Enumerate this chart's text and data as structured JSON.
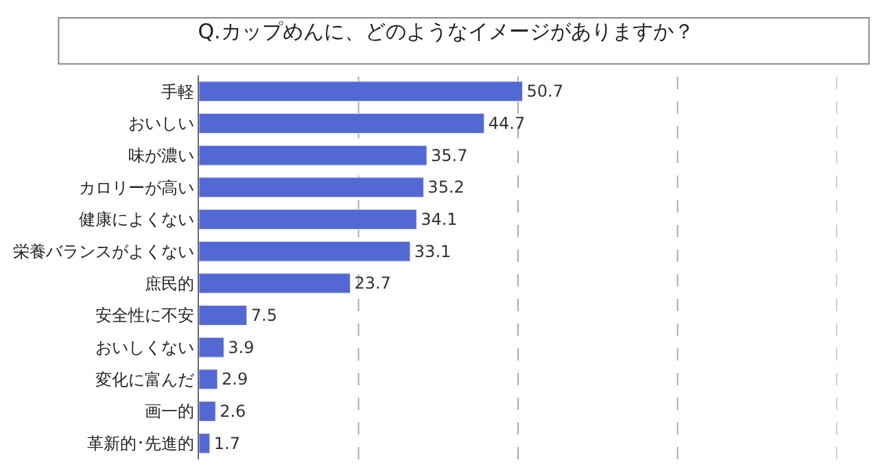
{
  "chart_data": {
    "type": "bar",
    "orientation": "horizontal",
    "title": "Q.カップめんに、どのようなイメージがありますか？",
    "categories": [
      "手軽",
      "おいしい",
      "味が濃い",
      "カロリーが高い",
      "健康によくない",
      "栄養バランスがよくない",
      "庶民的",
      "安全性に不安",
      "おいしくない",
      "変化に富んだ",
      "画一的",
      "革新的･先進的"
    ],
    "values": [
      50.7,
      44.7,
      35.7,
      35.2,
      34.1,
      33.1,
      23.7,
      7.5,
      3.9,
      2.9,
      2.6,
      1.7
    ],
    "color": "#5468d4",
    "xlim": [
      0,
      100
    ],
    "xticks": [
      {
        "value": 0,
        "label": null
      },
      {
        "value": 25,
        "label": null
      },
      {
        "value": 50,
        "label": null
      },
      {
        "value": 75,
        "label": null
      },
      {
        "value": 100,
        "label": null
      }
    ],
    "tick_labels": "y",
    "grid": "x",
    "data_labels": true
  }
}
